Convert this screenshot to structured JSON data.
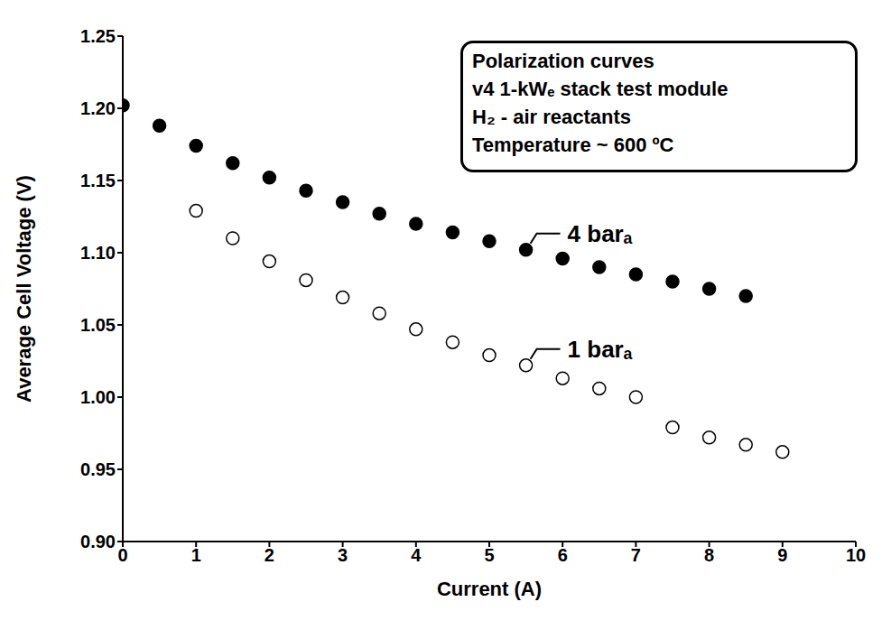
{
  "chart_data": {
    "type": "scatter",
    "text_box": [
      "Polarization curves",
      "v4 1-kWₑ stack test module",
      "H₂ - air reactants",
      "Temperature ~ 600 ºC"
    ],
    "x_label": "Current (A)",
    "y_label": "Average Cell Voltage (V)",
    "xlim": [
      0,
      10
    ],
    "xticks": [
      0,
      1,
      2,
      3,
      4,
      5,
      6,
      7,
      8,
      9,
      10
    ],
    "ylim": [
      0.9,
      1.25
    ],
    "yticks": [
      {
        "value": 0.9,
        "label": "0.90"
      },
      {
        "value": 0.95,
        "label": "0.95"
      },
      {
        "value": 1.0,
        "label": "1.00"
      },
      {
        "value": 1.05,
        "label": "1.05"
      },
      {
        "value": 1.1,
        "label": "1.10"
      },
      {
        "value": 1.15,
        "label": "1.15"
      },
      {
        "value": 1.2,
        "label": "1.20"
      },
      {
        "value": 1.25,
        "label": "1.25"
      }
    ],
    "grid": false,
    "series": [
      {
        "name": "4 barₐ",
        "color": "#000000",
        "marker": "filled",
        "x": [
          0,
          0.5,
          1,
          1.5,
          2,
          2.5,
          3,
          3.5,
          4,
          4.5,
          5,
          5.5,
          6,
          6.5,
          7,
          7.5,
          8,
          8.5
        ],
        "values": [
          1.202,
          1.188,
          1.174,
          1.162,
          1.152,
          1.143,
          1.135,
          1.127,
          1.12,
          1.114,
          1.108,
          1.102,
          1.096,
          1.09,
          1.085,
          1.08,
          1.075,
          1.07
        ]
      },
      {
        "name": "1 barₐ",
        "color": "#000000",
        "marker": "open",
        "x": [
          1,
          1.5,
          2,
          2.5,
          3,
          3.5,
          4,
          4.5,
          5,
          5.5,
          6,
          6.5,
          7,
          7.5,
          8,
          8.5,
          9
        ],
        "values": [
          1.129,
          1.11,
          1.094,
          1.081,
          1.069,
          1.058,
          1.047,
          1.038,
          1.029,
          1.022,
          1.013,
          1.006,
          1.0,
          0.979,
          0.972,
          0.967,
          0.962
        ]
      }
    ]
  }
}
